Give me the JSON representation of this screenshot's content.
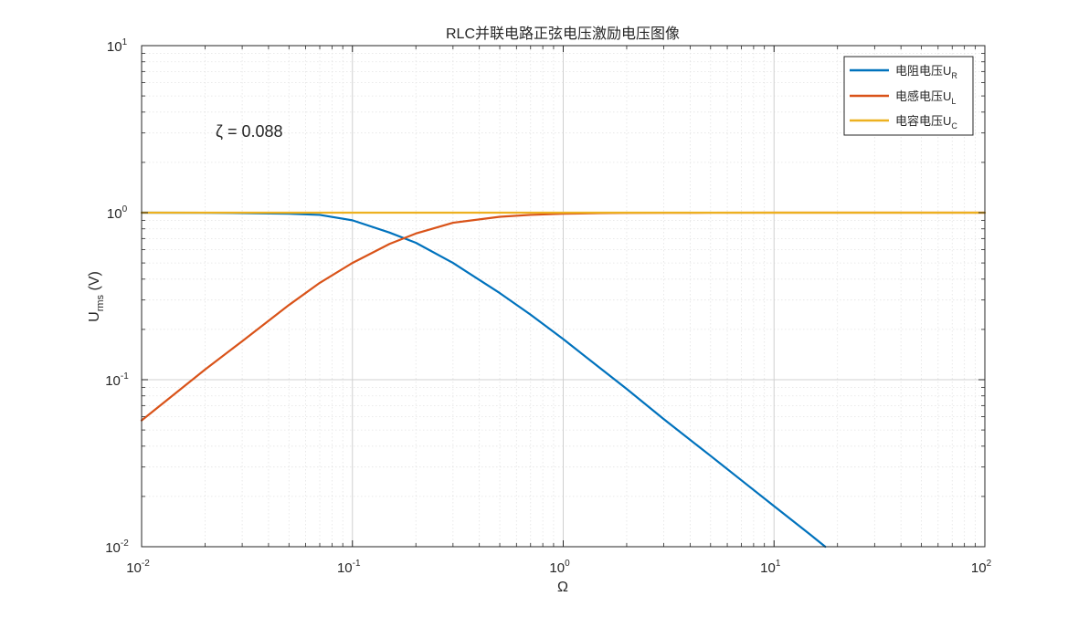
{
  "chart_data": {
    "type": "line",
    "title": "RLC并联电路正弦电压激励电压图像",
    "xlabel": "Ω",
    "ylabel": {
      "main": "U",
      "sub": "rms",
      "suffix": " (V)"
    },
    "xscale": "log",
    "yscale": "log",
    "xlim": [
      0.01,
      100
    ],
    "ylim": [
      0.01,
      10
    ],
    "x_ticks": [
      {
        "value": 0.01,
        "base": "10",
        "exp": "-2"
      },
      {
        "value": 0.1,
        "base": "10",
        "exp": "-1"
      },
      {
        "value": 1,
        "base": "10",
        "exp": "0"
      },
      {
        "value": 10,
        "base": "10",
        "exp": "1"
      },
      {
        "value": 100,
        "base": "10",
        "exp": "2"
      }
    ],
    "y_ticks": [
      {
        "value": 0.01,
        "base": "10",
        "exp": "-2"
      },
      {
        "value": 0.1,
        "base": "10",
        "exp": "-1"
      },
      {
        "value": 1,
        "base": "10",
        "exp": "0"
      },
      {
        "value": 10,
        "base": "10",
        "exp": "1"
      }
    ],
    "grid": true,
    "legend_position": "top-right",
    "annotation": "ζ = 0.088",
    "series": [
      {
        "name": "电阻电压U",
        "name_sub": "R",
        "color": "#0072BD",
        "x": [
          0.01,
          0.02,
          0.03,
          0.05,
          0.07,
          0.1,
          0.15,
          0.2,
          0.3,
          0.5,
          0.7,
          1,
          1.5,
          2,
          3,
          5,
          7,
          10,
          15,
          17.5
        ],
        "y": [
          1.0,
          0.998,
          0.994,
          0.985,
          0.97,
          0.9,
          0.76,
          0.66,
          0.5,
          0.33,
          0.245,
          0.175,
          0.117,
          0.088,
          0.058,
          0.035,
          0.025,
          0.0175,
          0.0117,
          0.01
        ]
      },
      {
        "name": "电感电压U",
        "name_sub": "L",
        "color": "#D95319",
        "x": [
          0.01,
          0.02,
          0.03,
          0.05,
          0.07,
          0.1,
          0.15,
          0.2,
          0.3,
          0.5,
          0.7,
          1,
          1.5,
          2,
          3,
          5,
          10,
          30,
          100
        ],
        "y": [
          0.057,
          0.115,
          0.17,
          0.28,
          0.38,
          0.5,
          0.65,
          0.75,
          0.87,
          0.945,
          0.97,
          0.985,
          0.993,
          0.996,
          0.998,
          0.999,
          1.0,
          1.0,
          1.0
        ]
      },
      {
        "name": "电容电压U",
        "name_sub": "C",
        "color": "#EDB120",
        "x": [
          0.01,
          100
        ],
        "y": [
          1.0,
          1.0
        ]
      }
    ]
  }
}
